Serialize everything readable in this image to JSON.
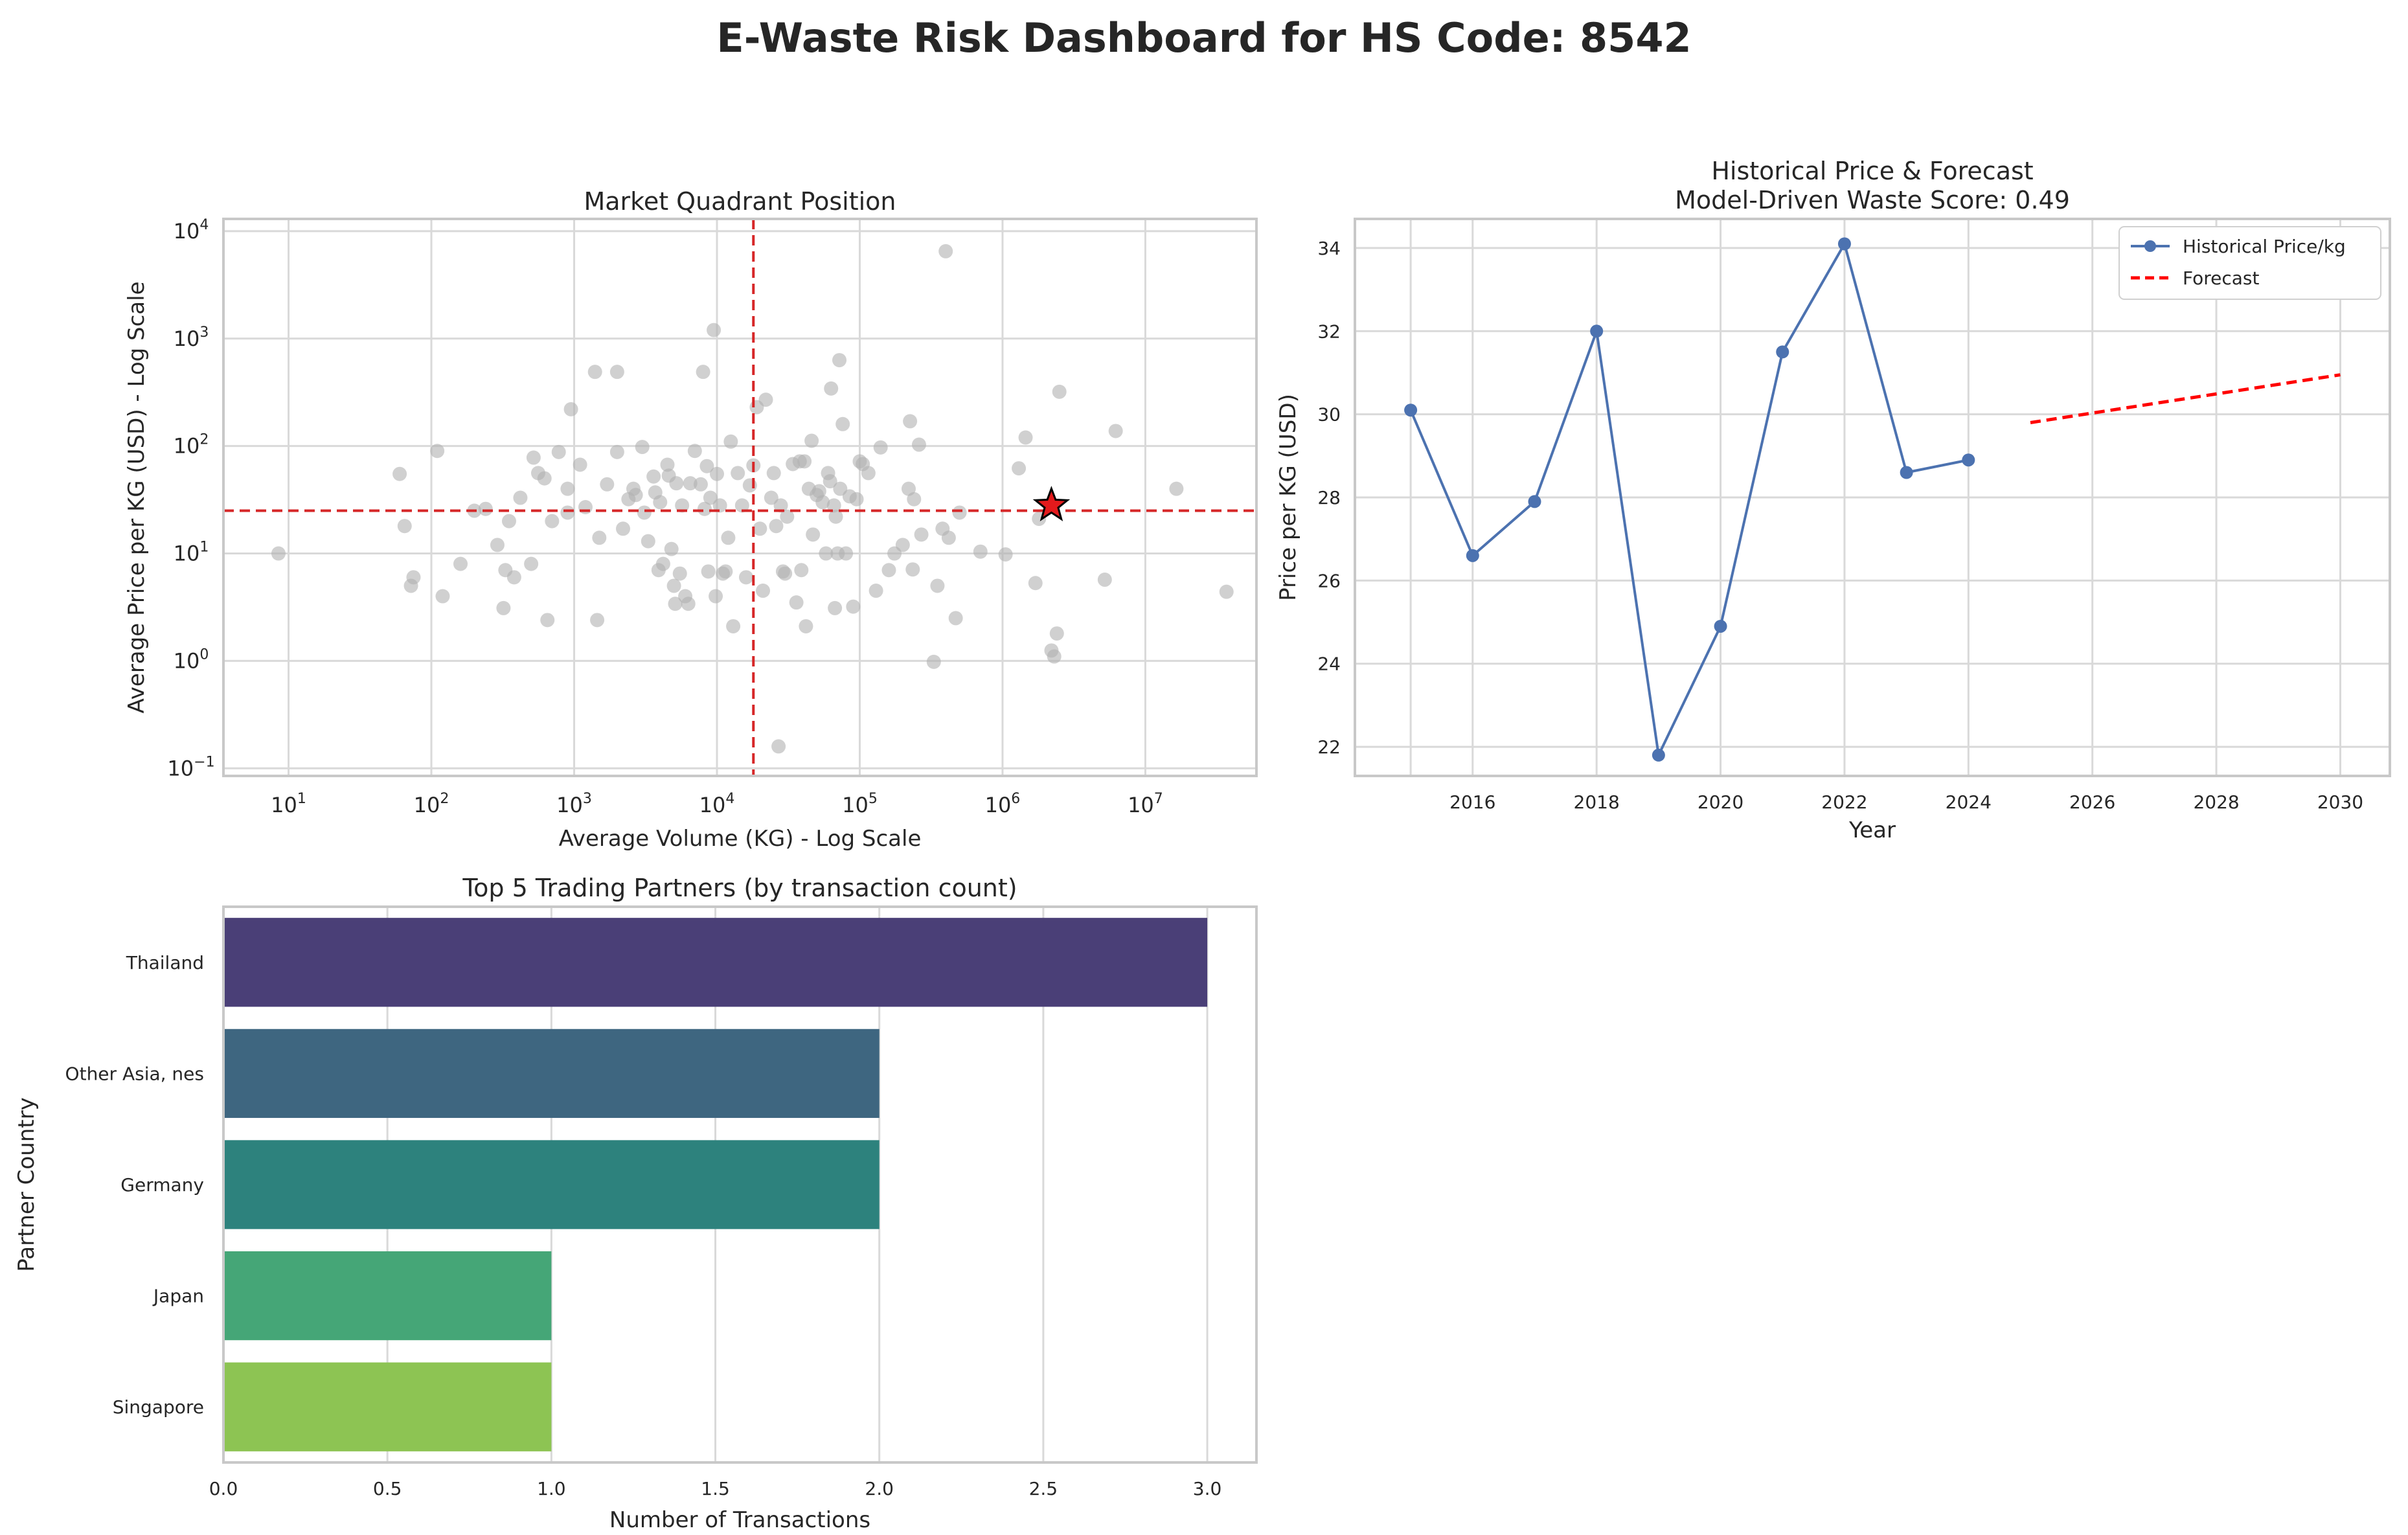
{
  "page": {
    "title": "E-Waste Risk Dashboard for HS Code: 8542"
  },
  "chart_data": [
    {
      "type": "scatter",
      "title": "Market Quadrant Position",
      "xlabel": "Average Volume (KG) - Log Scale",
      "ylabel": "Average Price per KG (USD) - Log Scale",
      "x_scale": "log",
      "y_scale": "log",
      "xlim": [
        3.5,
        60000000
      ],
      "ylim": [
        0.085,
        13000
      ],
      "x_ticks": [
        10,
        100,
        1000,
        10000,
        100000,
        1000000,
        10000000
      ],
      "y_ticks": [
        0.1,
        1,
        10,
        100,
        1000,
        10000
      ],
      "grid": true,
      "reference_lines": {
        "vertical_x": 18000,
        "horizontal_y": 25,
        "color": "#d62728"
      },
      "highlight_point": {
        "x": 2200000,
        "y": 28,
        "marker": "star",
        "color": "#e41a1c"
      },
      "points_color": "#b0b0b0",
      "points": [
        [
          8.5,
          10
        ],
        [
          60,
          55
        ],
        [
          65,
          18
        ],
        [
          72,
          5
        ],
        [
          75,
          6
        ],
        [
          110,
          90
        ],
        [
          120,
          4
        ],
        [
          160,
          8
        ],
        [
          200,
          25
        ],
        [
          240,
          26
        ],
        [
          290,
          12
        ],
        [
          320,
          3.1
        ],
        [
          330,
          7
        ],
        [
          350,
          20
        ],
        [
          380,
          6
        ],
        [
          420,
          33
        ],
        [
          500,
          8
        ],
        [
          520,
          78
        ],
        [
          560,
          56
        ],
        [
          620,
          50
        ],
        [
          650,
          2.4
        ],
        [
          700,
          20
        ],
        [
          780,
          88
        ],
        [
          900,
          24
        ],
        [
          900,
          40
        ],
        [
          950,
          220
        ],
        [
          1100,
          67
        ],
        [
          1200,
          27
        ],
        [
          1400,
          490
        ],
        [
          1450,
          2.4
        ],
        [
          1500,
          14
        ],
        [
          1700,
          44
        ],
        [
          2000,
          490
        ],
        [
          2000,
          88
        ],
        [
          2200,
          17
        ],
        [
          2400,
          32
        ],
        [
          2600,
          40
        ],
        [
          2700,
          35
        ],
        [
          3000,
          98
        ],
        [
          3100,
          24
        ],
        [
          3300,
          13
        ],
        [
          3600,
          52
        ],
        [
          3700,
          37
        ],
        [
          3900,
          7
        ],
        [
          4000,
          30
        ],
        [
          4200,
          8
        ],
        [
          4500,
          67
        ],
        [
          4600,
          53
        ],
        [
          4800,
          11
        ],
        [
          5000,
          5
        ],
        [
          5100,
          3.4
        ],
        [
          5200,
          45
        ],
        [
          5500,
          6.5
        ],
        [
          5700,
          28
        ],
        [
          6000,
          4
        ],
        [
          6300,
          3.4
        ],
        [
          6500,
          45
        ],
        [
          7000,
          90
        ],
        [
          7700,
          44
        ],
        [
          8000,
          490
        ],
        [
          8200,
          26
        ],
        [
          8500,
          65
        ],
        [
          8700,
          6.8
        ],
        [
          9000,
          33
        ],
        [
          9500,
          1200
        ],
        [
          9800,
          4
        ],
        [
          10000,
          55
        ],
        [
          10500,
          28
        ],
        [
          11000,
          6.5
        ],
        [
          11500,
          6.8
        ],
        [
          12000,
          14
        ],
        [
          12500,
          110
        ],
        [
          13000,
          2.1
        ],
        [
          14000,
          56
        ],
        [
          15000,
          28
        ],
        [
          16000,
          6
        ],
        [
          17000,
          43
        ],
        [
          18000,
          66
        ],
        [
          19000,
          230
        ],
        [
          20000,
          17
        ],
        [
          21000,
          4.5
        ],
        [
          22000,
          270
        ],
        [
          24000,
          33
        ],
        [
          25000,
          56
        ],
        [
          26000,
          18
        ],
        [
          27000,
          0.16
        ],
        [
          28000,
          28
        ],
        [
          29000,
          6.8
        ],
        [
          30000,
          6.5
        ],
        [
          31000,
          22
        ],
        [
          34000,
          68
        ],
        [
          36000,
          3.5
        ],
        [
          38000,
          72
        ],
        [
          39000,
          7
        ],
        [
          41000,
          72
        ],
        [
          42000,
          2.1
        ],
        [
          44000,
          40
        ],
        [
          46000,
          112
        ],
        [
          47000,
          15
        ],
        [
          50000,
          35
        ],
        [
          52000,
          38
        ],
        [
          55000,
          30
        ],
        [
          58000,
          10
        ],
        [
          60000,
          56
        ],
        [
          62000,
          47
        ],
        [
          63000,
          343
        ],
        [
          66000,
          28
        ],
        [
          67000,
          3.1
        ],
        [
          68000,
          22
        ],
        [
          70000,
          10
        ],
        [
          72000,
          630
        ],
        [
          73000,
          40
        ],
        [
          76000,
          160
        ],
        [
          80000,
          10
        ],
        [
          85000,
          34
        ],
        [
          90000,
          3.2
        ],
        [
          95000,
          32
        ],
        [
          100000,
          72
        ],
        [
          105000,
          68
        ],
        [
          115000,
          56
        ],
        [
          130000,
          4.5
        ],
        [
          140000,
          97
        ],
        [
          160000,
          7
        ],
        [
          175000,
          10
        ],
        [
          200000,
          12
        ],
        [
          220000,
          40
        ],
        [
          225000,
          170
        ],
        [
          235000,
          7.1
        ],
        [
          240000,
          32
        ],
        [
          260000,
          103
        ],
        [
          270000,
          15
        ],
        [
          330000,
          0.98
        ],
        [
          350000,
          5
        ],
        [
          380000,
          17
        ],
        [
          400000,
          6500
        ],
        [
          420000,
          14
        ],
        [
          470000,
          2.5
        ],
        [
          500000,
          24
        ],
        [
          700000,
          10.4
        ],
        [
          1050000,
          9.8
        ],
        [
          1300000,
          62
        ],
        [
          1450000,
          120
        ],
        [
          1700000,
          5.3
        ],
        [
          1800000,
          21
        ],
        [
          2200000,
          1.25
        ],
        [
          2300000,
          1.1
        ],
        [
          2400000,
          1.8
        ],
        [
          2500000,
          320
        ],
        [
          5200000,
          5.7
        ],
        [
          6200000,
          138
        ],
        [
          16500000,
          40
        ],
        [
          37000000,
          4.4
        ]
      ]
    },
    {
      "type": "line",
      "title": "Historical Price & Forecast",
      "subtitle": "Model-Driven Waste Score: 0.49",
      "xlabel": "Year",
      "ylabel": "Price per KG (USD)",
      "xlim": [
        2014.1,
        2030.8
      ],
      "ylim": [
        21.3,
        34.7
      ],
      "x_ticks": [
        2016,
        2018,
        2020,
        2022,
        2024,
        2026,
        2028,
        2030
      ],
      "y_ticks": [
        22,
        24,
        26,
        28,
        30,
        32,
        34
      ],
      "grid": true,
      "legend_position": "top-right",
      "series": [
        {
          "name": "Historical Price/kg",
          "style": "line-marker",
          "color": "#4c72b0",
          "x": [
            2015,
            2016,
            2017,
            2018,
            2019,
            2020,
            2021,
            2022,
            2023,
            2024
          ],
          "y": [
            30.1,
            26.6,
            27.9,
            32.0,
            21.8,
            24.9,
            31.5,
            34.1,
            28.6,
            28.9
          ]
        },
        {
          "name": "Forecast",
          "style": "dashed",
          "color": "#ff0000",
          "x": [
            2025,
            2030
          ],
          "y": [
            29.8,
            30.95
          ]
        }
      ]
    },
    {
      "type": "bar",
      "orientation": "horizontal",
      "title": "Top 5 Trading Partners (by transaction count)",
      "xlabel": "Number of Transactions",
      "ylabel": "Partner Country",
      "categories": [
        "Thailand",
        "Other Asia, nes",
        "Germany",
        "Japan",
        "Singapore"
      ],
      "values": [
        3,
        2,
        2,
        1,
        1
      ],
      "colors": [
        "#4a3f77",
        "#3e6680",
        "#2d827d",
        "#45a677",
        "#8dc453"
      ],
      "xlim": [
        0,
        3.15
      ],
      "x_ticks": [
        "0.0",
        "0.5",
        "1.0",
        "1.5",
        "2.0",
        "2.5",
        "3.0"
      ],
      "grid": true
    }
  ]
}
